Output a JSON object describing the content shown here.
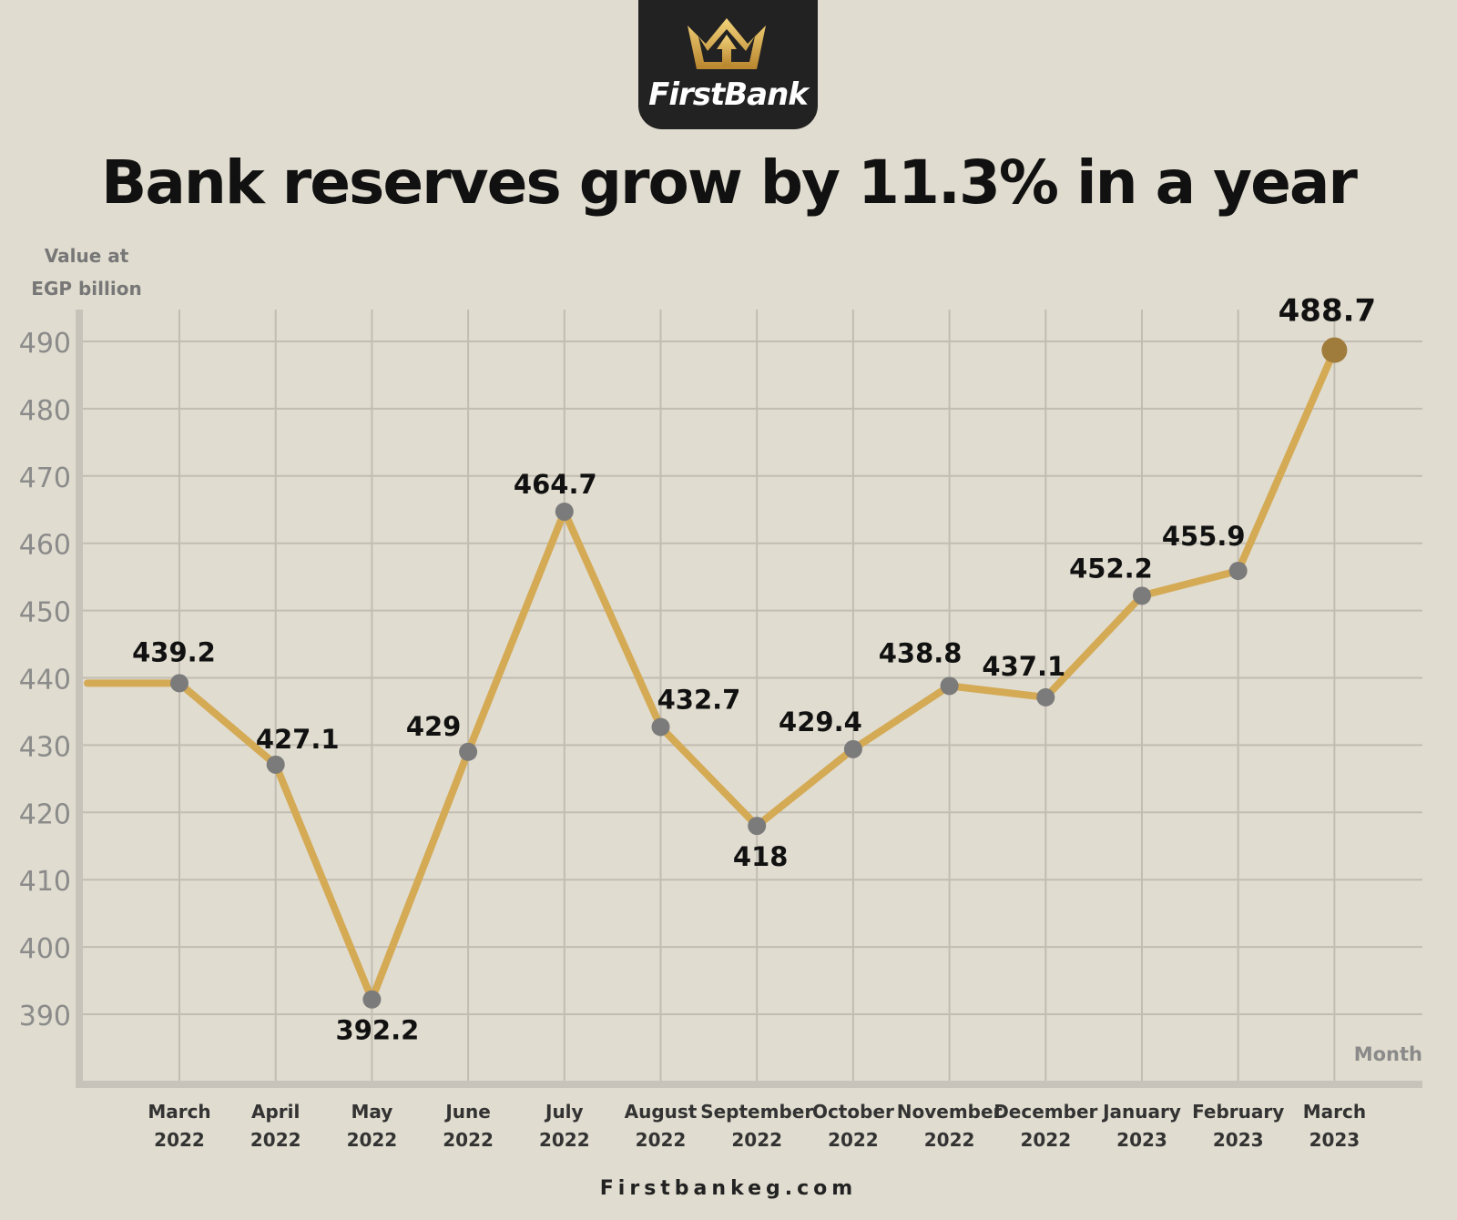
{
  "brand": {
    "name": "FirstBank",
    "accent": "#c9a548"
  },
  "headline": "Bank reserves grow by 11.3% in a year",
  "footer": {
    "website": "Firstbankeg.com"
  },
  "chart_data": {
    "type": "line",
    "title": "Bank reserves grow by 11.3% in a year",
    "ylabel": "Value at EGP billion",
    "xlabel": "Month",
    "categories": [
      [
        "March",
        "2022"
      ],
      [
        "April",
        "2022"
      ],
      [
        "May",
        "2022"
      ],
      [
        "June",
        "2022"
      ],
      [
        "July",
        "2022"
      ],
      [
        "August",
        "2022"
      ],
      [
        "September",
        "2022"
      ],
      [
        "October",
        "2022"
      ],
      [
        "November",
        "2022"
      ],
      [
        "December",
        "2022"
      ],
      [
        "January",
        "2023"
      ],
      [
        "February",
        "2023"
      ],
      [
        "March",
        "2023"
      ]
    ],
    "values": [
      439.2,
      427.1,
      392.2,
      429,
      464.7,
      432.7,
      418,
      429.4,
      438.8,
      437.1,
      452.2,
      455.9,
      488.7
    ],
    "value_labels": [
      "439.2",
      "427.1",
      "392.2",
      "429",
      "464.7",
      "432.7",
      "418",
      "429.4",
      "438.8",
      "437.1",
      "452.2",
      "455.9",
      "488.7"
    ],
    "yticks": [
      390,
      400,
      410,
      420,
      430,
      440,
      450,
      460,
      470,
      480,
      490
    ],
    "ylim": [
      380,
      495
    ],
    "grid": true,
    "legend": "none",
    "colors": {
      "line": "#d4aa55",
      "marker": "#7b7b7b",
      "highlight_marker": "#a07c3c",
      "grid": "#c2bdb2",
      "axis": "#c7c3ba"
    }
  }
}
